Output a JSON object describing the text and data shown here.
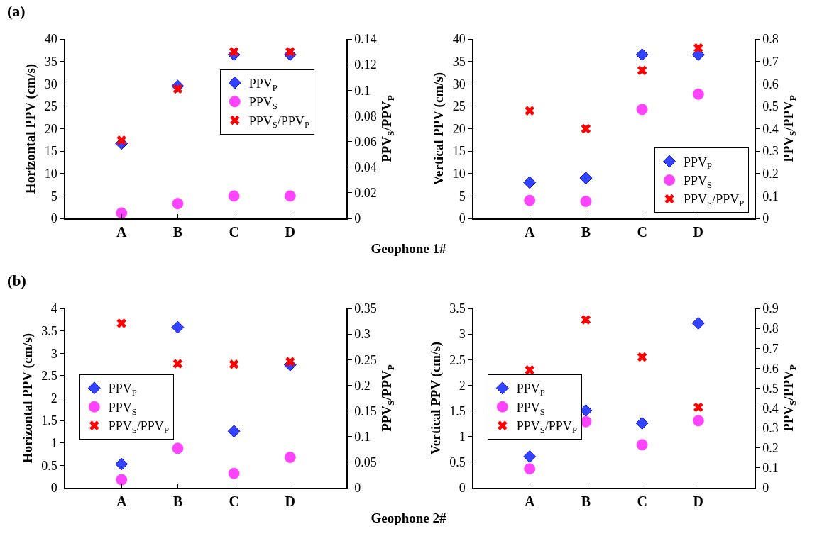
{
  "chart_data": [
    {
      "type": "scatter",
      "annotations": [
        "(a)"
      ],
      "xlabel": "Geophone 1#",
      "ylabel": "Horizontal PPV (cm/s)",
      "y2label": "PPV$_{S}$/PPV$_{P}$",
      "categories": [
        "A",
        "B",
        "C",
        "D"
      ],
      "ylim": [
        0,
        40
      ],
      "yticks": [
        0,
        5,
        10,
        15,
        20,
        25,
        30,
        35,
        40
      ],
      "y2lim": [
        0,
        0.14
      ],
      "y2ticks": [
        0,
        0.02,
        0.04,
        0.06,
        0.08,
        0.1,
        0.12,
        0.14
      ],
      "legend": "right",
      "grid": false,
      "series": [
        {
          "name": "PPV$_{P}$",
          "color": "#3344ff",
          "marker": "diamond",
          "values": [
            16.7,
            29.5,
            36.5,
            36.5
          ]
        },
        {
          "name": "PPV$_{S}$",
          "color": "#ff44ff",
          "marker": "circle",
          "values": [
            1.2,
            3.3,
            5.0,
            5.0
          ]
        },
        {
          "name": "PPV$_{S}$/PPV$_{P}$",
          "color": "#ff0000",
          "marker": "cross",
          "axis": "y2",
          "values": [
            0.061,
            0.101,
            0.13,
            0.13
          ]
        }
      ]
    },
    {
      "type": "scatter",
      "ylabel": "Vertical PPV (cm/s)",
      "y2label": "PPV$_{S}$/PPV$_{P}$",
      "categories": [
        "A",
        "B",
        "C",
        "D"
      ],
      "ylim": [
        0,
        40
      ],
      "yticks": [
        0,
        5,
        10,
        15,
        20,
        25,
        30,
        35,
        40
      ],
      "y2lim": [
        0,
        0.8
      ],
      "y2ticks": [
        0,
        0.1,
        0.2,
        0.3,
        0.4,
        0.5,
        0.6,
        0.7,
        0.8
      ],
      "legend": "bottom right",
      "grid": false,
      "series": [
        {
          "name": "PPV$_{P}$",
          "color": "#3344ff",
          "marker": "diamond",
          "values": [
            8,
            9,
            36.5,
            36.5
          ]
        },
        {
          "name": "PPV$_{S}$",
          "color": "#ff44ff",
          "marker": "circle",
          "values": [
            4,
            3.8,
            24.3,
            27.7
          ]
        },
        {
          "name": "PPV$_{S}$/PPV$_{P}$",
          "color": "#ff0000",
          "marker": "cross",
          "axis": "y2",
          "values": [
            0.48,
            0.4,
            0.66,
            0.76
          ]
        }
      ]
    },
    {
      "type": "scatter",
      "annotations": [
        "(b)"
      ],
      "xlabel": "Geophone 2#",
      "ylabel": "Horizontal PPV (cm/s)",
      "y2label": "PPV$_{S}$/PPV$_{P}$",
      "categories": [
        "A",
        "B",
        "C",
        "D"
      ],
      "ylim": [
        0,
        4
      ],
      "yticks": [
        0,
        0.5,
        1,
        1.5,
        2,
        2.5,
        3,
        3.5,
        4
      ],
      "y2lim": [
        0,
        0.35
      ],
      "y2ticks": [
        0,
        0.05,
        0.1,
        0.15,
        0.2,
        0.25,
        0.3,
        0.35
      ],
      "legend": "left",
      "grid": false,
      "series": [
        {
          "name": "PPV$_{P}$",
          "color": "#3344ff",
          "marker": "diamond",
          "values": [
            0.53,
            3.58,
            1.26,
            2.74
          ]
        },
        {
          "name": "PPV$_{S}$",
          "color": "#ff44ff",
          "marker": "circle",
          "values": [
            0.18,
            0.88,
            0.32,
            0.68
          ]
        },
        {
          "name": "PPV$_{S}$/PPV$_{P}$",
          "color": "#ff0000",
          "marker": "cross",
          "axis": "y2",
          "values": [
            0.321,
            0.242,
            0.241,
            0.246
          ]
        }
      ]
    },
    {
      "type": "scatter",
      "ylabel": "Vertical PPV (cm/s)",
      "y2label": "PPV$_{S}$/PPV$_{P}$",
      "categories": [
        "A",
        "B",
        "C",
        "D"
      ],
      "ylim": [
        0,
        3.5
      ],
      "yticks": [
        0,
        0.5,
        1,
        1.5,
        2,
        2.5,
        3,
        3.5
      ],
      "y2lim": [
        0,
        0.9
      ],
      "y2ticks": [
        0,
        0.1,
        0.2,
        0.3,
        0.4,
        0.5,
        0.6,
        0.7,
        0.8,
        0.9
      ],
      "legend": "left",
      "grid": false,
      "series": [
        {
          "name": "PPV$_{P}$",
          "color": "#3344ff",
          "marker": "diamond",
          "values": [
            0.61,
            1.51,
            1.26,
            3.21
          ]
        },
        {
          "name": "PPV$_{S}$",
          "color": "#ff44ff",
          "marker": "circle",
          "values": [
            0.37,
            1.29,
            0.84,
            1.31
          ]
        },
        {
          "name": "PPV$_{S}$/PPV$_{P}$",
          "color": "#ff0000",
          "marker": "cross",
          "axis": "y2",
          "values": [
            0.591,
            0.843,
            0.656,
            0.404
          ]
        }
      ]
    }
  ]
}
